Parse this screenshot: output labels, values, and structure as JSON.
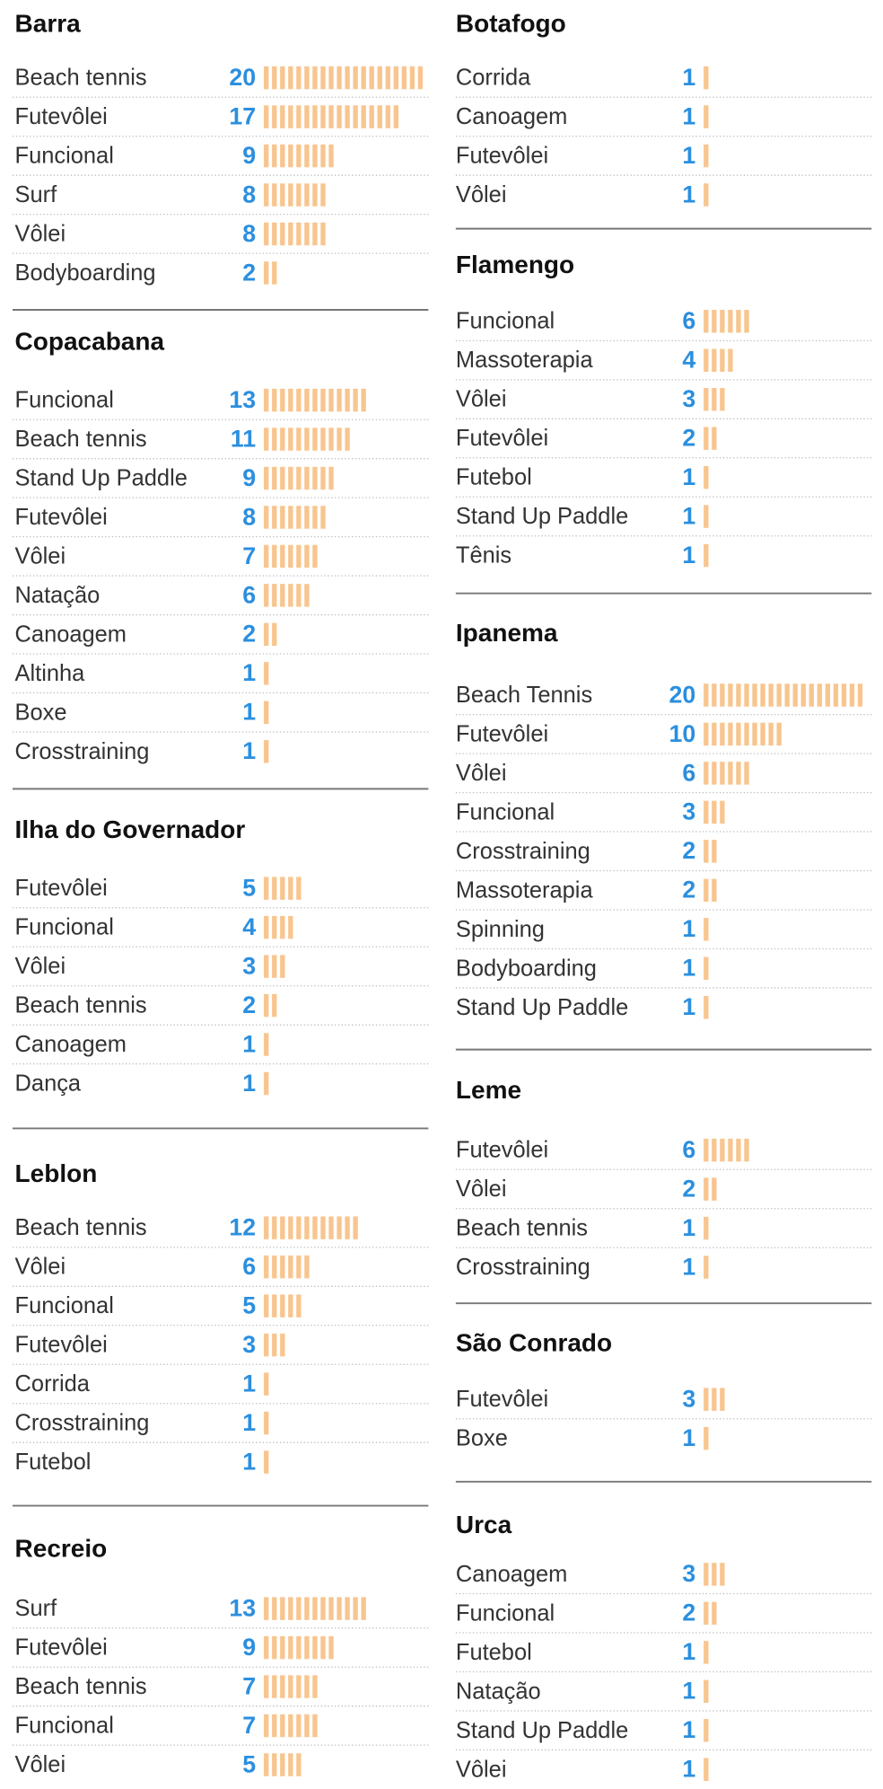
{
  "chart_data": [
    {
      "type": "tally",
      "title": "Barra",
      "color": "#f8c58f",
      "categories": [
        "Beach tennis",
        "Futevôlei",
        "Funcional",
        "Surf",
        "Vôlei",
        "Bodyboarding"
      ],
      "values": [
        20,
        17,
        9,
        8,
        8,
        2
      ]
    },
    {
      "type": "tally",
      "title": "Copacabana",
      "color": "#f8c58f",
      "categories": [
        "Funcional",
        "Beach tennis",
        "Stand Up Paddle",
        "Futevôlei",
        "Vôlei",
        "Natação",
        "Canoagem",
        "Altinha",
        "Boxe",
        "Crosstraining"
      ],
      "values": [
        13,
        11,
        9,
        8,
        7,
        6,
        2,
        1,
        1,
        1
      ]
    },
    {
      "type": "tally",
      "title": "Ilha do Governador",
      "color": "#f8c58f",
      "categories": [
        "Futevôlei",
        "Funcional",
        "Vôlei",
        "Beach tennis",
        "Canoagem",
        "Dança"
      ],
      "values": [
        5,
        4,
        3,
        2,
        1,
        1
      ]
    },
    {
      "type": "tally",
      "title": "Leblon",
      "color": "#f8c58f",
      "categories": [
        "Beach tennis",
        "Vôlei",
        "Funcional",
        "Futevôlei",
        "Corrida",
        "Crosstraining",
        "Futebol"
      ],
      "values": [
        12,
        6,
        5,
        3,
        1,
        1,
        1
      ]
    },
    {
      "type": "tally",
      "title": "Recreio",
      "color": "#f8c58f",
      "categories": [
        "Surf",
        "Futevôlei",
        "Beach tennis",
        "Funcional",
        "Vôlei"
      ],
      "values": [
        13,
        9,
        7,
        7,
        5
      ]
    },
    {
      "type": "tally",
      "title": "Botafogo",
      "color": "#f8c58f",
      "categories": [
        "Corrida",
        "Canoagem",
        "Futevôlei",
        "Vôlei"
      ],
      "values": [
        1,
        1,
        1,
        1
      ]
    },
    {
      "type": "tally",
      "title": "Flamengo",
      "color": "#f8c58f",
      "categories": [
        "Funcional",
        "Massoterapia",
        "Vôlei",
        "Futevôlei",
        "Futebol",
        "Stand Up Paddle",
        "Tênis"
      ],
      "values": [
        6,
        4,
        3,
        2,
        1,
        1,
        1
      ]
    },
    {
      "type": "tally",
      "title": "Ipanema",
      "color": "#f8c58f",
      "categories": [
        "Beach Tennis",
        "Futevôlei",
        "Vôlei",
        "Funcional",
        "Crosstraining",
        "Massoterapia",
        "Spinning",
        "Bodyboarding",
        "Stand Up Paddle"
      ],
      "values": [
        20,
        10,
        6,
        3,
        2,
        2,
        1,
        1,
        1
      ]
    },
    {
      "type": "tally",
      "title": "Leme",
      "color": "#f8c58f",
      "categories": [
        "Futevôlei",
        "Vôlei",
        "Beach tennis",
        "Crosstraining"
      ],
      "values": [
        6,
        2,
        1,
        1
      ]
    },
    {
      "type": "tally",
      "title": "São Conrado",
      "color": "#f8c58f",
      "categories": [
        "Futevôlei",
        "Boxe"
      ],
      "values": [
        3,
        1
      ]
    },
    {
      "type": "tally",
      "title": "Urca",
      "color": "#f8c58f",
      "categories": [
        "Canoagem",
        "Funcional",
        "Futebol",
        "Natação",
        "Stand Up Paddle",
        "Vôlei"
      ],
      "values": [
        3,
        2,
        1,
        1,
        1,
        1
      ]
    }
  ]
}
